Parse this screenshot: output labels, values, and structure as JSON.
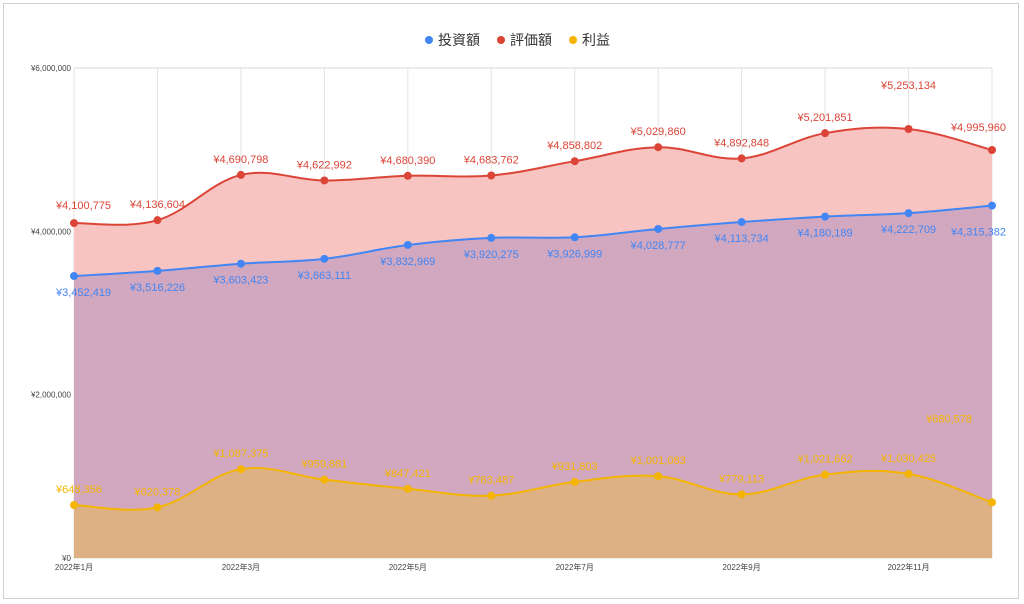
{
  "chart_data": {
    "type": "area",
    "title": "",
    "xlabel": "",
    "ylabel": "",
    "ylim": [
      0,
      6000000
    ],
    "y_ticks": [
      {
        "value": 0,
        "label": "¥0"
      },
      {
        "value": 2000000,
        "label": "¥2,000,000"
      },
      {
        "value": 4000000,
        "label": "¥4,000,000"
      },
      {
        "value": 6000000,
        "label": "¥6,000,000"
      }
    ],
    "x_tick_labels": [
      {
        "index": 0,
        "label": "2022年1月"
      },
      {
        "index": 2,
        "label": "2022年3月"
      },
      {
        "index": 4,
        "label": "2022年5月"
      },
      {
        "index": 6,
        "label": "2022年7月"
      },
      {
        "index": 8,
        "label": "2022年9月"
      },
      {
        "index": 10,
        "label": "2022年11月"
      }
    ],
    "grid": true,
    "legend_position": "top",
    "series": [
      {
        "name": "投資額",
        "color": "#4285f4",
        "values": [
          3452419,
          3516226,
          3603423,
          3663111,
          3832969,
          3920275,
          3926999,
          4028777,
          4113734,
          4180189,
          4222709,
          4315382
        ],
        "labels": [
          "¥3,452,419",
          "¥3,516,226",
          "¥3,603,423",
          "¥3,663,111",
          "¥3,832,969",
          "¥3,920,275",
          "¥3,926,999",
          "¥4,028,777",
          "¥4,113,734",
          "¥4,180,189",
          "¥4,222,709",
          "¥4,315,382"
        ]
      },
      {
        "name": "評価額",
        "color": "#db4437",
        "values": [
          4100775,
          4136604,
          4690798,
          4622992,
          4680390,
          4683762,
          4858802,
          5029860,
          4892848,
          5201851,
          5253134,
          4995960
        ],
        "labels": [
          "¥4,100,775",
          "¥4,136,604",
          "¥4,690,798",
          "¥4,622,992",
          "¥4,680,390",
          "¥4,683,762",
          "¥4,858,802",
          "¥5,029,860",
          "¥4,892,848",
          "¥5,201,851",
          "¥5,253,134",
          "¥4,995,960"
        ]
      },
      {
        "name": "利益",
        "color": "#f4b400",
        "values": [
          648356,
          620378,
          1087375,
          959881,
          847421,
          763487,
          931803,
          1001083,
          779113,
          1021662,
          1030425,
          680578
        ],
        "labels": [
          "¥648,356",
          "¥620,378",
          "¥1,087,375",
          "¥959,881",
          "¥847,421",
          "¥763,487",
          "¥931,803",
          "¥1,001,083",
          "¥779,113",
          "¥1,021,662",
          "¥1,030,425",
          "¥680,578"
        ]
      }
    ],
    "area_colors": {
      "評価額": "#f7c4c1",
      "投資額": "#d1a8bf",
      "利益": "#ddb184"
    }
  }
}
